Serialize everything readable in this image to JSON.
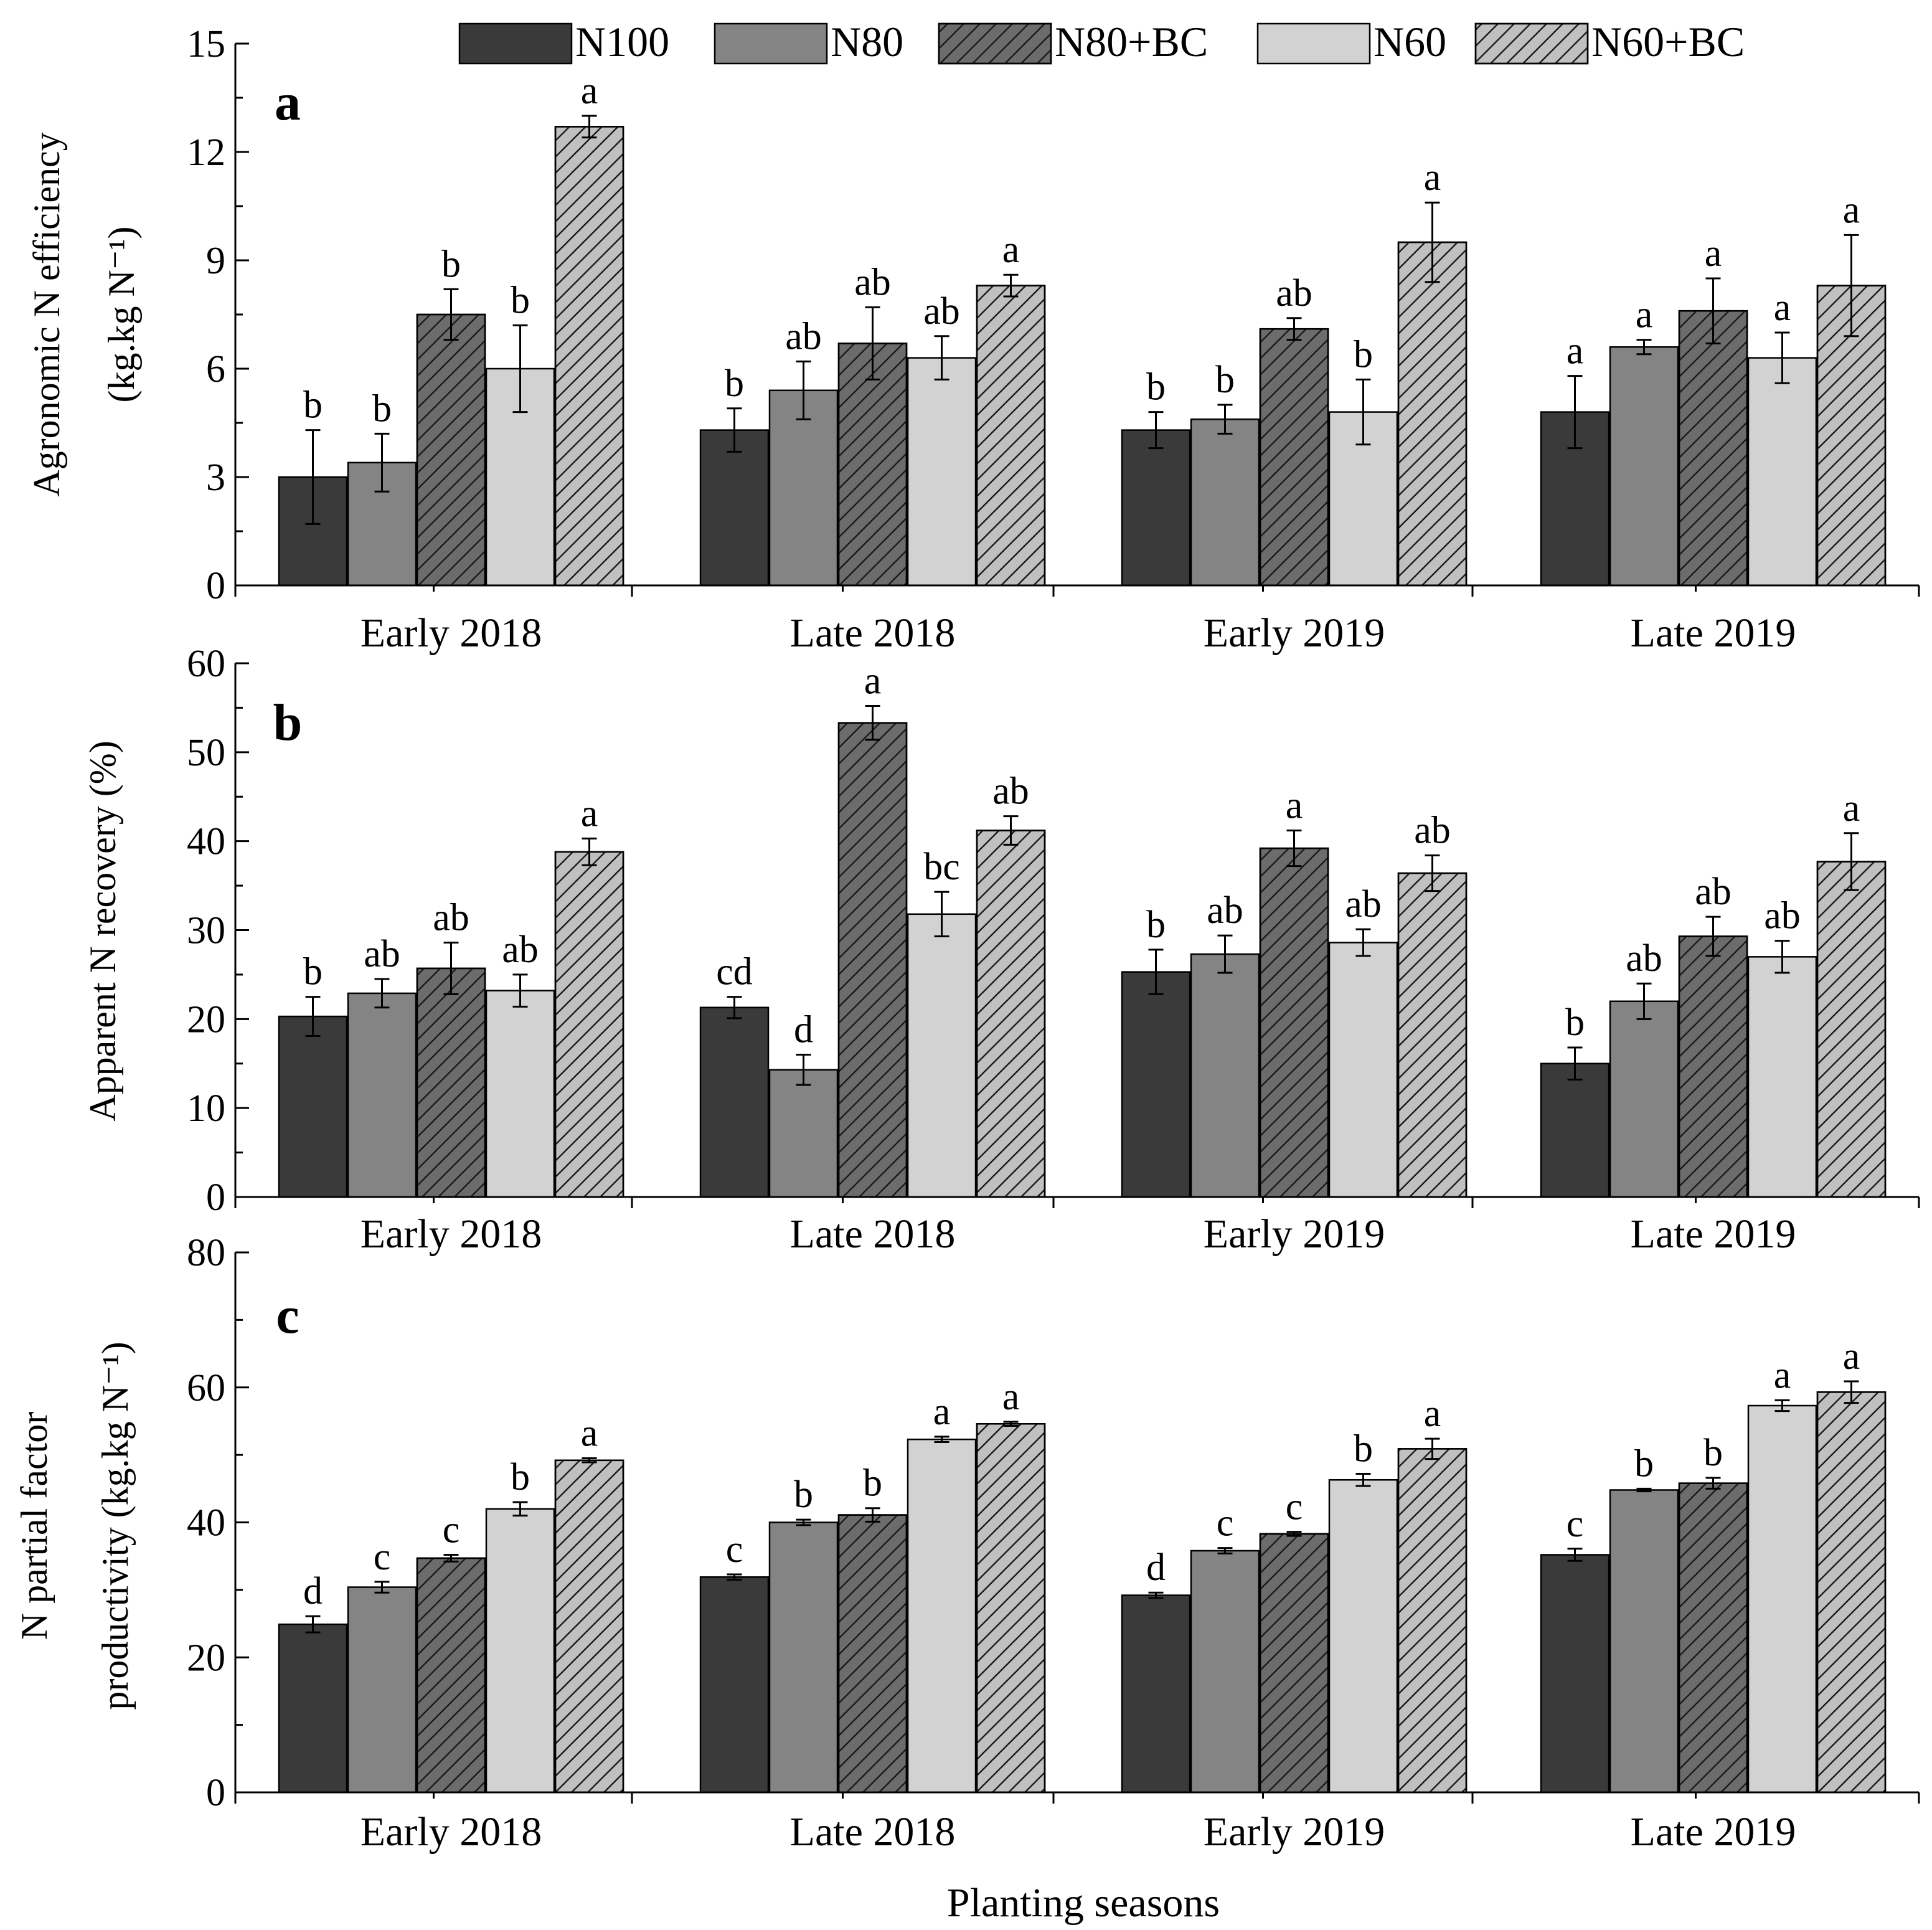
{
  "legend": [
    {
      "name": "N100",
      "color": "#3a3a3a",
      "hatch": false
    },
    {
      "name": "N80",
      "color": "#848484",
      "hatch": false
    },
    {
      "name": "N80+BC",
      "color": "#6c6c6c",
      "hatch": true
    },
    {
      "name": "N60",
      "color": "#d2d2d2",
      "hatch": false
    },
    {
      "name": "N60+BC",
      "color": "#c0c0c0",
      "hatch": true
    }
  ],
  "xlabel": "Planting seasons",
  "chart_data": [
    {
      "type": "bar",
      "panel": "a",
      "ylabel_lines": [
        "Agronomic N efficiency",
        "(kg.kg N⁻¹)"
      ],
      "ylim": [
        0,
        15
      ],
      "yticks": [
        0,
        3,
        6,
        9,
        12,
        15
      ],
      "categories": [
        "Early 2018",
        "Late 2018",
        "Early 2019",
        "Late 2019"
      ],
      "series": [
        {
          "name": "N100",
          "values": [
            3.0,
            4.3,
            4.3,
            4.8
          ],
          "errors": [
            1.3,
            0.6,
            0.5,
            1.0
          ],
          "letters": [
            "b",
            "b",
            "b",
            "a"
          ]
        },
        {
          "name": "N80",
          "values": [
            3.4,
            5.4,
            4.6,
            6.6
          ],
          "errors": [
            0.8,
            0.8,
            0.4,
            0.2
          ],
          "letters": [
            "b",
            "ab",
            "b",
            "a"
          ]
        },
        {
          "name": "N80+BC",
          "values": [
            7.5,
            6.7,
            7.1,
            7.6
          ],
          "errors": [
            0.7,
            1.0,
            0.3,
            0.9
          ],
          "letters": [
            "b",
            "ab",
            "ab",
            "a"
          ]
        },
        {
          "name": "N60",
          "values": [
            6.0,
            6.3,
            4.8,
            6.3
          ],
          "errors": [
            1.2,
            0.6,
            0.9,
            0.7
          ],
          "letters": [
            "b",
            "ab",
            "b",
            "a"
          ]
        },
        {
          "name": "N60+BC",
          "values": [
            12.7,
            8.3,
            9.5,
            8.3
          ],
          "errors": [
            0.3,
            0.3,
            1.1,
            1.4
          ],
          "letters": [
            "a",
            "a",
            "a",
            "a"
          ]
        }
      ]
    },
    {
      "type": "bar",
      "panel": "b",
      "ylabel_lines": [
        "Apparent N recovery (%)"
      ],
      "ylim": [
        0,
        60
      ],
      "yticks": [
        0,
        10,
        20,
        30,
        40,
        50,
        60
      ],
      "categories": [
        "Early 2018",
        "Late 2018",
        "Early 2019",
        "Late 2019"
      ],
      "series": [
        {
          "name": "N100",
          "values": [
            20.3,
            21.3,
            25.3,
            15.0
          ],
          "errors": [
            2.2,
            1.2,
            2.5,
            1.8
          ],
          "letters": [
            "b",
            "cd",
            "b",
            "b"
          ]
        },
        {
          "name": "N80",
          "values": [
            22.9,
            14.3,
            27.3,
            22.0
          ],
          "errors": [
            1.6,
            1.7,
            2.1,
            2.0
          ],
          "letters": [
            "ab",
            "d",
            "ab",
            "ab"
          ]
        },
        {
          "name": "N80+BC",
          "values": [
            25.7,
            53.3,
            39.2,
            29.3
          ],
          "errors": [
            2.9,
            1.9,
            2.0,
            2.2
          ],
          "letters": [
            "ab",
            "a",
            "a",
            "ab"
          ]
        },
        {
          "name": "N60",
          "values": [
            23.2,
            31.8,
            28.6,
            27.0
          ],
          "errors": [
            1.8,
            2.5,
            1.5,
            1.8
          ],
          "letters": [
            "ab",
            "bc",
            "ab",
            "ab"
          ]
        },
        {
          "name": "N60+BC",
          "values": [
            38.8,
            41.2,
            36.4,
            37.7
          ],
          "errors": [
            1.5,
            1.6,
            2.0,
            3.2
          ],
          "letters": [
            "a",
            "ab",
            "ab",
            "a"
          ]
        }
      ]
    },
    {
      "type": "bar",
      "panel": "c",
      "ylabel_lines": [
        "N partial factor",
        "productivity (kg.kg N⁻¹)"
      ],
      "ylim": [
        0,
        80
      ],
      "yticks": [
        0,
        20,
        40,
        60,
        80
      ],
      "categories": [
        "Early 2018",
        "Late 2018",
        "Early 2019",
        "Late 2019"
      ],
      "series": [
        {
          "name": "N100",
          "values": [
            24.9,
            31.9,
            29.2,
            35.2
          ],
          "errors": [
            1.2,
            0.4,
            0.4,
            0.9
          ],
          "letters": [
            "d",
            "c",
            "d",
            "c"
          ]
        },
        {
          "name": "N80",
          "values": [
            30.4,
            40.0,
            35.8,
            44.8
          ],
          "errors": [
            0.8,
            0.4,
            0.4,
            0.2
          ],
          "letters": [
            "c",
            "b",
            "c",
            "b"
          ]
        },
        {
          "name": "N80+BC",
          "values": [
            34.7,
            41.1,
            38.3,
            45.8
          ],
          "errors": [
            0.5,
            1.0,
            0.3,
            0.8
          ],
          "letters": [
            "c",
            "b",
            "c",
            "b"
          ]
        },
        {
          "name": "N60",
          "values": [
            42.0,
            52.3,
            46.3,
            57.3
          ],
          "errors": [
            1.0,
            0.4,
            0.9,
            0.8
          ],
          "letters": [
            "b",
            "a",
            "b",
            "a"
          ]
        },
        {
          "name": "N60+BC",
          "values": [
            49.2,
            54.6,
            50.9,
            59.3
          ],
          "errors": [
            0.3,
            0.3,
            1.5,
            1.6
          ],
          "letters": [
            "a",
            "a",
            "a",
            "a"
          ]
        }
      ]
    }
  ]
}
